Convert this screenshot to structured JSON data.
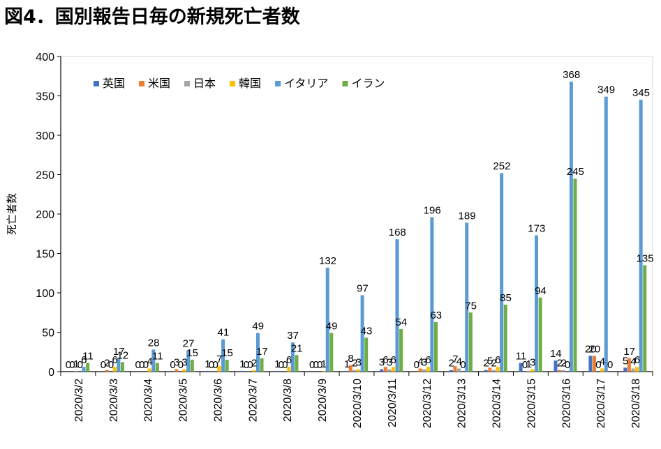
{
  "title": "図4．国別報告日毎の新規死亡者数",
  "chart_data": {
    "type": "bar",
    "title": "図4．国別報告日毎の新規死亡者数",
    "xlabel": "",
    "ylabel": "死亡者数",
    "ylim": [
      0,
      400
    ],
    "yticks": [
      "0",
      "50",
      "100",
      "150",
      "200",
      "250",
      "300",
      "350",
      "400"
    ],
    "grid": false,
    "legend_position": "top-left",
    "categories": [
      "2020/3/2",
      "2020/3/3",
      "2020/3/4",
      "2020/3/5",
      "2020/3/6",
      "2020/3/7",
      "2020/3/8",
      "2020/3/9",
      "2020/3/10",
      "2020/3/11",
      "2020/3/12",
      "2020/3/13",
      "2020/3/14",
      "2020/3/15",
      "2020/3/16",
      "2020/3/17",
      "2020/3/18"
    ],
    "series": [
      {
        "name": "英国",
        "color": "#4472C4",
        "values": [
          0,
          0,
          0,
          0,
          1,
          1,
          1,
          0,
          1,
          3,
          0,
          2,
          2,
          11,
          14,
          20,
          5
        ]
      },
      {
        "name": "米国",
        "color": "#ED7D31",
        "values": [
          0,
          2,
          0,
          3,
          0,
          0,
          0,
          0,
          8,
          6,
          4,
          7,
          5,
          0,
          2,
          20,
          17
        ]
      },
      {
        "name": "日本",
        "color": "#A5A5A5",
        "values": [
          1,
          0,
          0,
          0,
          0,
          0,
          0,
          0,
          2,
          3,
          3,
          4,
          2,
          1,
          2,
          0,
          4
        ]
      },
      {
        "name": "韓国",
        "color": "#FFC000",
        "values": [
          0,
          6,
          4,
          3,
          7,
          2,
          6,
          1,
          3,
          6,
          6,
          0,
          6,
          3,
          0,
          4,
          6
        ]
      },
      {
        "name": "イタリア",
        "color": "#5B9BD5",
        "values": [
          6,
          17,
          28,
          27,
          41,
          49,
          37,
          132,
          97,
          168,
          196,
          189,
          252,
          173,
          368,
          349,
          345
        ]
      },
      {
        "name": "イラン",
        "color": "#70AD47",
        "values": [
          11,
          12,
          11,
          15,
          15,
          17,
          21,
          49,
          43,
          54,
          63,
          75,
          85,
          94,
          245,
          0,
          135
        ]
      }
    ]
  }
}
